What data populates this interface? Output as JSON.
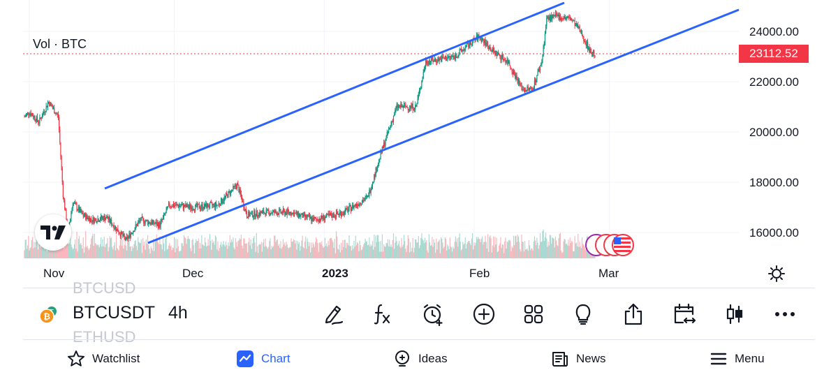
{
  "chart": {
    "volume_label": "Vol · BTC",
    "current_price": "23112.52",
    "price_axis": [
      "24000.00",
      "22000.00",
      "20000.00",
      "18000.00",
      "16000.00"
    ],
    "time_axis": [
      {
        "label": "Nov",
        "bold": false
      },
      {
        "label": "Dec",
        "bold": false
      },
      {
        "label": "2023",
        "bold": true
      },
      {
        "label": "Feb",
        "bold": false
      },
      {
        "label": "Mar",
        "bold": false
      }
    ],
    "colors": {
      "up": "#089981",
      "down": "#f23645",
      "trendline": "#2962ff",
      "price_tag": "#f23645"
    },
    "trendlines": "ascending channel (two parallel lines)"
  },
  "chart_data": {
    "type": "candlestick",
    "symbol": "BTCUSDT",
    "interval": "4h",
    "ylim": [
      15000,
      25500
    ],
    "price_path": [
      [
        "2022-10-31",
        20600
      ],
      [
        "2022-11-01",
        20800
      ],
      [
        "2022-11-03",
        20400
      ],
      [
        "2022-11-05",
        21200
      ],
      [
        "2022-11-07",
        20600
      ],
      [
        "2022-11-08",
        17500
      ],
      [
        "2022-11-09",
        16000
      ],
      [
        "2022-11-10",
        17200
      ],
      [
        "2022-11-12",
        16700
      ],
      [
        "2022-11-14",
        16500
      ],
      [
        "2022-11-17",
        16600
      ],
      [
        "2022-11-21",
        15700
      ],
      [
        "2022-11-24",
        16500
      ],
      [
        "2022-11-28",
        16300
      ],
      [
        "2022-11-30",
        17100
      ],
      [
        "2022-12-05",
        17000
      ],
      [
        "2022-12-10",
        17100
      ],
      [
        "2022-12-14",
        17900
      ],
      [
        "2022-12-16",
        16700
      ],
      [
        "2022-12-20",
        16800
      ],
      [
        "2022-12-25",
        16800
      ],
      [
        "2022-12-30",
        16500
      ],
      [
        "2023-01-05",
        16800
      ],
      [
        "2023-01-10",
        17400
      ],
      [
        "2023-01-13",
        19300
      ],
      [
        "2023-01-16",
        21000
      ],
      [
        "2023-01-20",
        21000
      ],
      [
        "2023-01-22",
        22800
      ],
      [
        "2023-01-25",
        22900
      ],
      [
        "2023-01-28",
        23000
      ],
      [
        "2023-02-02",
        23800
      ],
      [
        "2023-02-05",
        23200
      ],
      [
        "2023-02-08",
        22800
      ],
      [
        "2023-02-11",
        21700
      ],
      [
        "2023-02-13",
        21700
      ],
      [
        "2023-02-15",
        22800
      ],
      [
        "2023-02-16",
        24500
      ],
      [
        "2023-02-18",
        24600
      ],
      [
        "2023-02-21",
        24500
      ],
      [
        "2023-02-23",
        24000
      ],
      [
        "2023-02-25",
        23200
      ],
      [
        "2023-02-26",
        23112.52
      ]
    ]
  },
  "symbol_bar": {
    "ghost_above": "BTCUSD",
    "symbol": "BTCUSDT",
    "ghost_below": "ETHUSD",
    "interval": "4h"
  },
  "toolbar": [
    {
      "name": "drawing-tools-icon"
    },
    {
      "name": "indicators-icon"
    },
    {
      "name": "alert-icon"
    },
    {
      "name": "add-icon"
    },
    {
      "name": "layouts-icon"
    },
    {
      "name": "ideas-bulb-icon"
    },
    {
      "name": "share-icon"
    },
    {
      "name": "date-range-icon"
    },
    {
      "name": "chart-type-icon"
    },
    {
      "name": "more-icon"
    }
  ],
  "nav": {
    "watchlist": "Watchlist",
    "chart": "Chart",
    "ideas": "Ideas",
    "news": "News",
    "menu": "Menu"
  }
}
